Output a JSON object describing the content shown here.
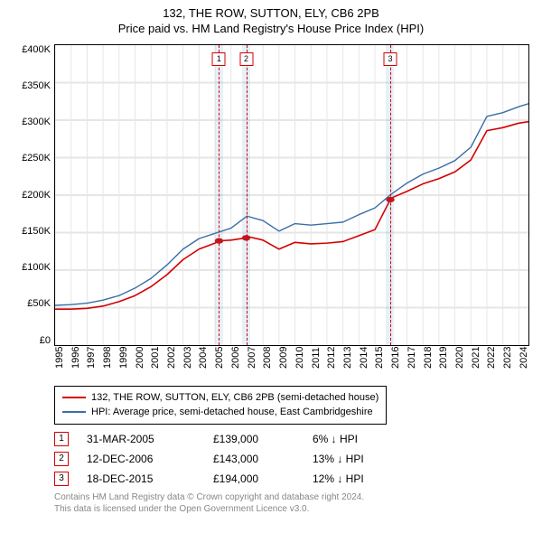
{
  "title": "132, THE ROW, SUTTON, ELY, CB6 2PB",
  "subtitle": "Price paid vs. HM Land Registry's House Price Index (HPI)",
  "chart": {
    "type": "line",
    "background_color": "#ffffff",
    "grid_color": "#e6e6e6",
    "axis_color": "#000000",
    "ylim": [
      0,
      400000
    ],
    "ytick_step": 50000,
    "yticks_labels": [
      "£400K",
      "£350K",
      "£300K",
      "£250K",
      "£200K",
      "£150K",
      "£100K",
      "£50K",
      "£0"
    ],
    "xlim": [
      1995,
      2024.6
    ],
    "xticks": [
      1995,
      1996,
      1997,
      1998,
      1999,
      2000,
      2001,
      2002,
      2003,
      2004,
      2005,
      2006,
      2007,
      2008,
      2009,
      2010,
      2011,
      2012,
      2013,
      2014,
      2015,
      2016,
      2017,
      2018,
      2019,
      2020,
      2021,
      2022,
      2023,
      2024
    ],
    "xticks_labels": [
      "1995",
      "1996",
      "1997",
      "1998",
      "1999",
      "2000",
      "2001",
      "2002",
      "2003",
      "2004",
      "2005",
      "2006",
      "2007",
      "2008",
      "2009",
      "2010",
      "2011",
      "2012",
      "2013",
      "2014",
      "2015",
      "2016",
      "2017",
      "2018",
      "2019",
      "2020",
      "2021",
      "2022",
      "2023",
      "2024"
    ],
    "series": [
      {
        "name": "132, THE ROW, SUTTON, ELY, CB6 2PB (semi-detached house)",
        "color": "#d40000",
        "line_width": 1.6,
        "x": [
          1995,
          1996,
          1997,
          1998,
          1999,
          2000,
          2001,
          2002,
          2003,
          2004,
          2005,
          2005.25,
          2006,
          2006.95,
          2007,
          2008,
          2009,
          2010,
          2011,
          2012,
          2013,
          2014,
          2015,
          2015.96,
          2016,
          2017,
          2018,
          2019,
          2020,
          2021,
          2022,
          2023,
          2024,
          2024.6
        ],
        "y": [
          48000,
          48000,
          49000,
          52000,
          58000,
          66000,
          78000,
          94000,
          114000,
          128000,
          136000,
          139000,
          140000,
          143000,
          145000,
          140000,
          128000,
          137000,
          135000,
          136000,
          138000,
          146000,
          154000,
          194000,
          196000,
          205000,
          215000,
          222000,
          231000,
          247000,
          286000,
          290000,
          296000,
          298000
        ]
      },
      {
        "name": "HPI: Average price, semi-detached house, East Cambridgeshire",
        "color": "#3a6ea5",
        "line_width": 1.4,
        "x": [
          1995,
          1996,
          1997,
          1998,
          1999,
          2000,
          2001,
          2002,
          2003,
          2004,
          2005,
          2006,
          2007,
          2008,
          2009,
          2010,
          2011,
          2012,
          2013,
          2014,
          2015,
          2016,
          2017,
          2018,
          2019,
          2020,
          2021,
          2022,
          2023,
          2024,
          2024.6
        ],
        "y": [
          53000,
          54000,
          56000,
          60000,
          66000,
          76000,
          89000,
          107000,
          128000,
          142000,
          149000,
          156000,
          172000,
          166000,
          152000,
          162000,
          160000,
          162000,
          164000,
          174000,
          183000,
          201000,
          216000,
          228000,
          236000,
          246000,
          264000,
          305000,
          310000,
          318000,
          322000
        ]
      }
    ],
    "shaded_bands": [
      {
        "from": 2005.0,
        "to": 2005.5,
        "color": "rgba(102,153,204,0.15)"
      },
      {
        "from": 2006.7,
        "to": 2007.2,
        "color": "rgba(102,153,204,0.15)"
      },
      {
        "from": 2015.7,
        "to": 2016.2,
        "color": "rgba(102,153,204,0.15)"
      }
    ],
    "event_markers": [
      {
        "id": "1",
        "x": 2005.25,
        "y": 139000,
        "line_color": "#d40000",
        "label_bg": "#ffffff"
      },
      {
        "id": "2",
        "x": 2006.95,
        "y": 143000,
        "line_color": "#d40000",
        "label_bg": "#ffffff"
      },
      {
        "id": "3",
        "x": 2015.96,
        "y": 194000,
        "line_color": "#d40000",
        "label_bg": "#ffffff"
      }
    ],
    "point_marker": {
      "shape": "circle",
      "size": 5,
      "fill": "#d40000",
      "stroke": "#d40000"
    }
  },
  "legend": {
    "rows": [
      {
        "color": "#d40000",
        "text": "132, THE ROW, SUTTON, ELY, CB6 2PB (semi-detached house)"
      },
      {
        "color": "#3a6ea5",
        "text": "HPI: Average price, semi-detached house, East Cambridgeshire"
      }
    ]
  },
  "events_table": {
    "rows": [
      {
        "id": "1",
        "date": "31-MAR-2005",
        "price": "£139,000",
        "diff": "6% ↓ HPI",
        "color": "#d40000"
      },
      {
        "id": "2",
        "date": "12-DEC-2006",
        "price": "£143,000",
        "diff": "13% ↓ HPI",
        "color": "#d40000"
      },
      {
        "id": "3",
        "date": "18-DEC-2015",
        "price": "£194,000",
        "diff": "12% ↓ HPI",
        "color": "#d40000"
      }
    ]
  },
  "copyright": {
    "line1": "Contains HM Land Registry data © Crown copyright and database right 2024.",
    "line2": "This data is licensed under the Open Government Licence v3.0."
  }
}
